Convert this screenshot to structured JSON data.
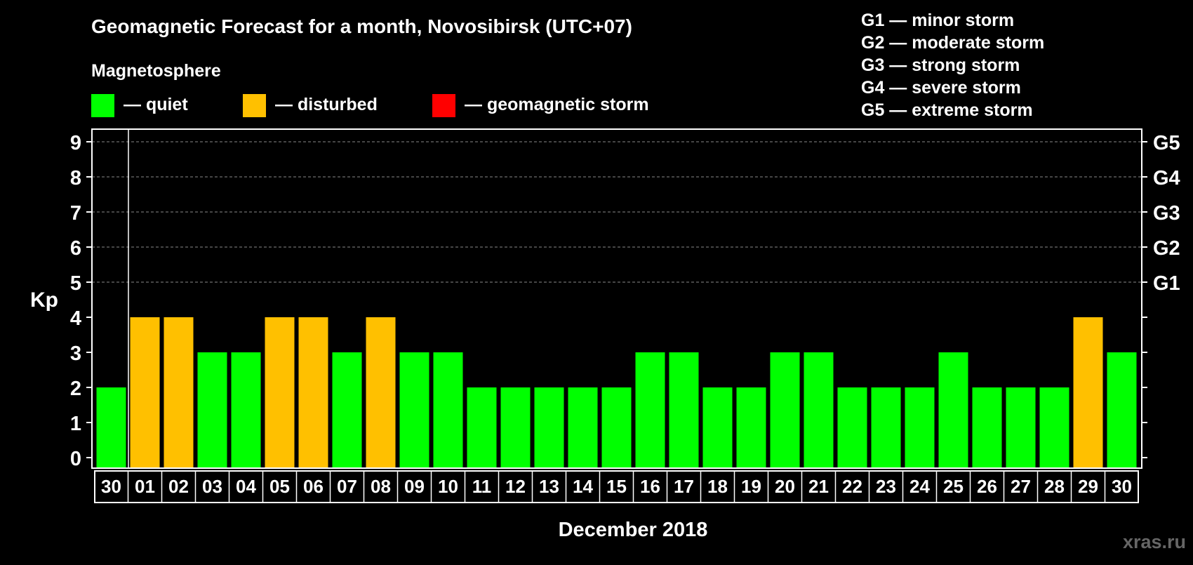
{
  "title": "Geomagnetic Forecast for a month, Novosibirsk (UTC+07)",
  "legend": {
    "heading": "Magnetosphere",
    "items": [
      {
        "label": "— quiet",
        "color": "#00ff00"
      },
      {
        "label": "— disturbed",
        "color": "#ffc000"
      },
      {
        "label": "— geomagnetic storm",
        "color": "#ff0000"
      }
    ]
  },
  "storm_scale": [
    "G1 — minor storm",
    "G2 — moderate storm",
    "G3 — strong storm",
    "G4 — severe storm",
    "G5 — extreme storm"
  ],
  "watermark": "xras.ru",
  "chart_data": {
    "type": "bar",
    "title": "Geomagnetic Forecast for a month, Novosibirsk (UTC+07)",
    "xlabel": "December 2018",
    "ylabel": "Kp",
    "ylim": [
      0,
      9
    ],
    "yticks": [
      "0",
      "1",
      "2",
      "3",
      "4",
      "5",
      "6",
      "7",
      "8",
      "9"
    ],
    "right_ticks": [
      {
        "kp": 5,
        "label": "G1"
      },
      {
        "kp": 6,
        "label": "G2"
      },
      {
        "kp": 7,
        "label": "G3"
      },
      {
        "kp": 8,
        "label": "G4"
      },
      {
        "kp": 9,
        "label": "G5"
      }
    ],
    "categories": [
      "30",
      "01",
      "02",
      "03",
      "04",
      "05",
      "06",
      "07",
      "08",
      "09",
      "10",
      "11",
      "12",
      "13",
      "14",
      "15",
      "16",
      "17",
      "18",
      "19",
      "20",
      "21",
      "22",
      "23",
      "24",
      "25",
      "26",
      "27",
      "28",
      "29",
      "30"
    ],
    "values": [
      2,
      4,
      4,
      3,
      3,
      4,
      4,
      3,
      4,
      3,
      3,
      2,
      2,
      2,
      2,
      2,
      3,
      3,
      2,
      2,
      3,
      3,
      2,
      2,
      2,
      3,
      2,
      2,
      2,
      4,
      3
    ],
    "status": [
      "quiet",
      "disturbed",
      "disturbed",
      "quiet",
      "quiet",
      "disturbed",
      "disturbed",
      "quiet",
      "disturbed",
      "quiet",
      "quiet",
      "quiet",
      "quiet",
      "quiet",
      "quiet",
      "quiet",
      "quiet",
      "quiet",
      "quiet",
      "quiet",
      "quiet",
      "quiet",
      "quiet",
      "quiet",
      "quiet",
      "quiet",
      "quiet",
      "quiet",
      "quiet",
      "disturbed",
      "quiet"
    ],
    "colors": {
      "quiet": "#00ff00",
      "disturbed": "#ffc000",
      "storm": "#ff0000"
    },
    "grid": true
  }
}
